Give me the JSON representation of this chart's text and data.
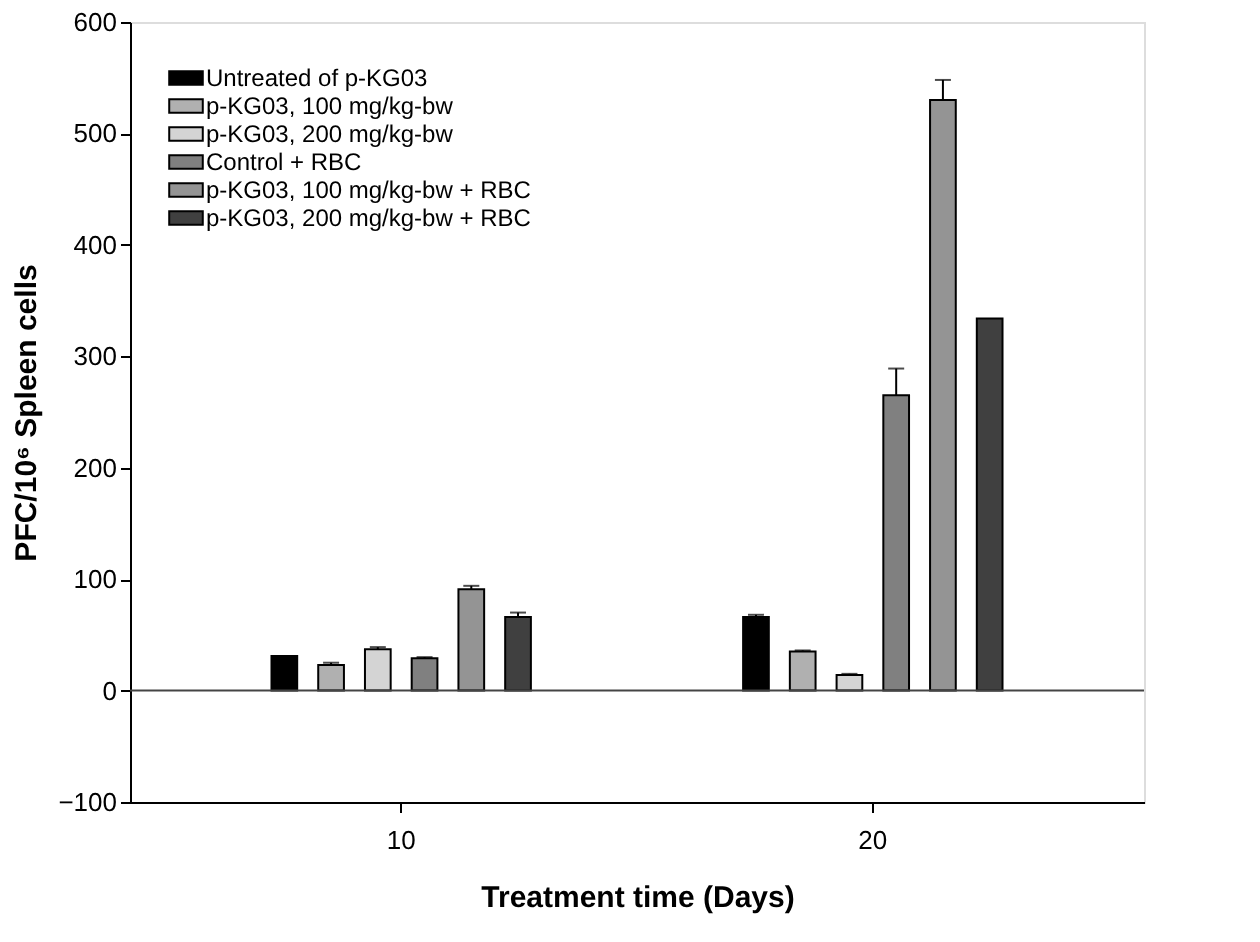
{
  "chart_data": {
    "type": "bar",
    "xlabel": "Treatment time (Days)",
    "ylabel": "PFC/10⁶ Spleen cells",
    "categories": [
      "10",
      "20"
    ],
    "series": [
      {
        "name": "Untreated of p-KG03",
        "color": "#000000",
        "values": [
          31,
          66
        ],
        "errors": [
          null,
          2
        ]
      },
      {
        "name": "p-KG03, 100 mg/kg-bw",
        "color": "#b0b0b0",
        "values": [
          23,
          35
        ],
        "errors": [
          2,
          1
        ]
      },
      {
        "name": "p-KG03, 200 mg/kg-bw",
        "color": "#d4d4d4",
        "values": [
          37,
          14
        ],
        "errors": [
          2,
          1
        ]
      },
      {
        "name": "Control + RBC",
        "color": "#808080",
        "values": [
          29,
          265
        ],
        "errors": [
          1,
          24
        ]
      },
      {
        "name": "p-KG03, 100 mg/kg-bw + RBC",
        "color": "#949494",
        "values": [
          91,
          530
        ],
        "errors": [
          3,
          18
        ]
      },
      {
        "name": "p-KG03, 200 mg/kg-bw + RBC",
        "color": "#404040",
        "values": [
          66,
          334
        ],
        "errors": [
          4,
          null
        ]
      }
    ],
    "ylim": [
      -100,
      600
    ],
    "yticks": [
      -100,
      0,
      100,
      200,
      300,
      400,
      500,
      600
    ],
    "ref_lines": [
      {
        "axis": "y",
        "value": 0
      }
    ],
    "grid": false,
    "legend": "top left"
  }
}
